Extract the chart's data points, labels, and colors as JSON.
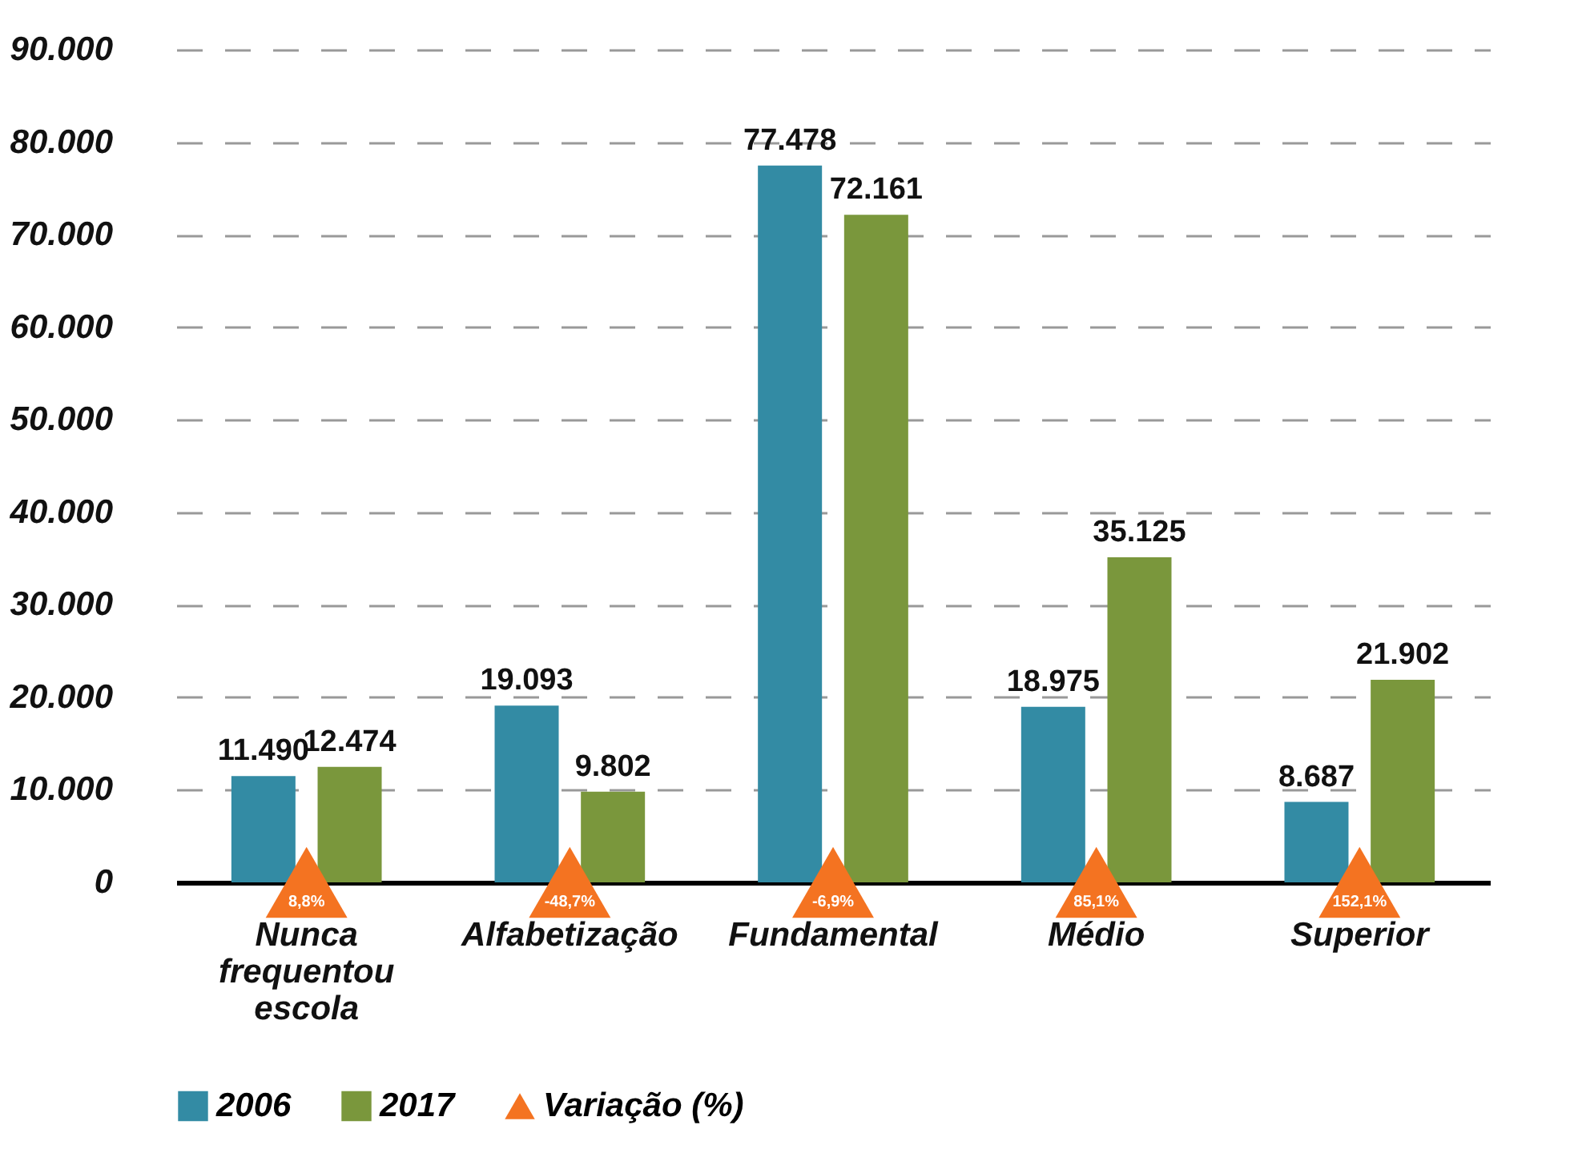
{
  "chart_data": {
    "type": "bar",
    "categories": [
      "Nunca frequentou escola",
      "Alfabetização",
      "Fundamental",
      "Médio",
      "Superior"
    ],
    "series": [
      {
        "name": "2006",
        "color": "#338ba4",
        "values": [
          11490,
          19093,
          77478,
          18975,
          8687
        ],
        "value_labels": [
          "11.490",
          "19.093",
          "77.478",
          "18.975",
          "8.687"
        ]
      },
      {
        "name": "2017",
        "color": "#7a973c",
        "values": [
          12474,
          9802,
          72161,
          35125,
          21902
        ],
        "value_labels": [
          "12.474",
          "9.802",
          "72.161",
          "35.125",
          "21.902"
        ]
      },
      {
        "name": "Variação (%)",
        "type": "scatter",
        "marker": "triangle",
        "color": "#f47321",
        "values": [
          null,
          null,
          null,
          null,
          null
        ]
      }
    ],
    "annotations": [
      "8,8%",
      "-48,7%",
      "-6,9%",
      "85,1%",
      "152,1%"
    ],
    "ylim": [
      0,
      90000
    ],
    "yticks": [
      {
        "value": 0,
        "label": "0"
      },
      {
        "value": 10000,
        "label": "10.000"
      },
      {
        "value": 20000,
        "label": "20.000"
      },
      {
        "value": 30000,
        "label": "30.000"
      },
      {
        "value": 40000,
        "label": "40.000"
      },
      {
        "value": 50000,
        "label": "50.000"
      },
      {
        "value": 60000,
        "label": "60.000"
      },
      {
        "value": 70000,
        "label": "70.000"
      },
      {
        "value": 80000,
        "label": "80.000"
      },
      {
        "value": 90000,
        "label": "90.000"
      }
    ],
    "grid": "y",
    "legend": "bottom"
  }
}
